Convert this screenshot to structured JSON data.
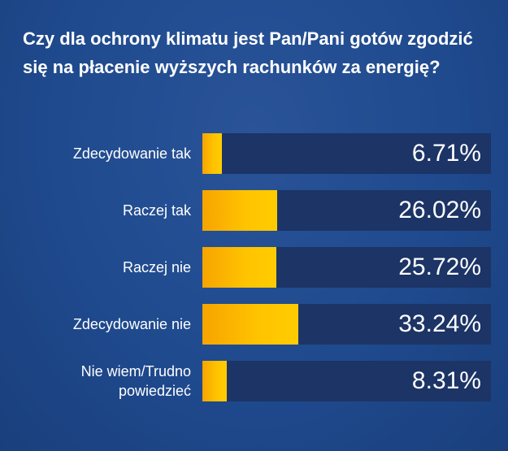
{
  "chart_data": {
    "type": "bar",
    "orientation": "horizontal",
    "title": "Czy dla ochrony klimatu jest Pan/Pani gotów zgodzić się na płacenie wyższych rachunków za energię?",
    "categories": [
      "Zdecydowanie tak",
      "Raczej tak",
      "Raczej nie",
      "Zdecydowanie nie",
      "Nie wiem/Trudno powiedzieć"
    ],
    "values": [
      6.71,
      26.02,
      25.72,
      33.24,
      8.31
    ],
    "value_labels": [
      "6.71%",
      "26.02%",
      "25.72%",
      "33.24%",
      "8.31%"
    ],
    "unit": "%",
    "xlim": [
      0,
      100
    ]
  },
  "colors": {
    "background": "#1f4a8e",
    "track": "#1c3466",
    "bar": "#ffc400",
    "text": "#ffffff"
  }
}
